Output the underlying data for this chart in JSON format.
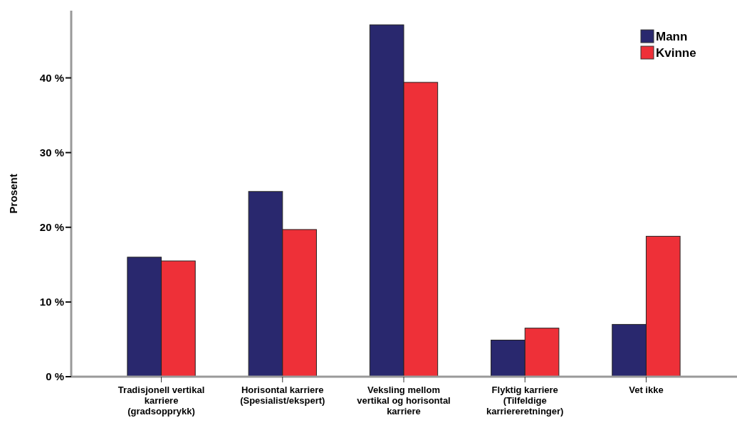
{
  "chart_data": {
    "type": "bar",
    "ylabel": "Prosent",
    "categories": [
      "Tradisjonell vertikal karriere (gradsopprykk)",
      "Horisontal karriere (Spesialist/ekspert)",
      "Veksling mellom vertikal og horisontal karriere",
      "Flyktig karriere (Tilfeldige karriereretninger)",
      "Vet ikke"
    ],
    "series": [
      {
        "name": "Mann",
        "color": "#29286e",
        "values": [
          16.0,
          24.8,
          47.1,
          4.9,
          7.0
        ]
      },
      {
        "name": "Kvinne",
        "color": "#ee3038",
        "values": [
          15.5,
          19.7,
          39.4,
          6.5,
          18.8
        ]
      }
    ],
    "ylim": [
      0,
      49
    ],
    "yticks": [
      {
        "value": 0,
        "label": "0 %"
      },
      {
        "value": 10,
        "label": "10 %"
      },
      {
        "value": 20,
        "label": "20 %"
      },
      {
        "value": 30,
        "label": "30 %"
      },
      {
        "value": 40,
        "label": "40 %"
      }
    ],
    "grid": false,
    "legend": "top right"
  }
}
